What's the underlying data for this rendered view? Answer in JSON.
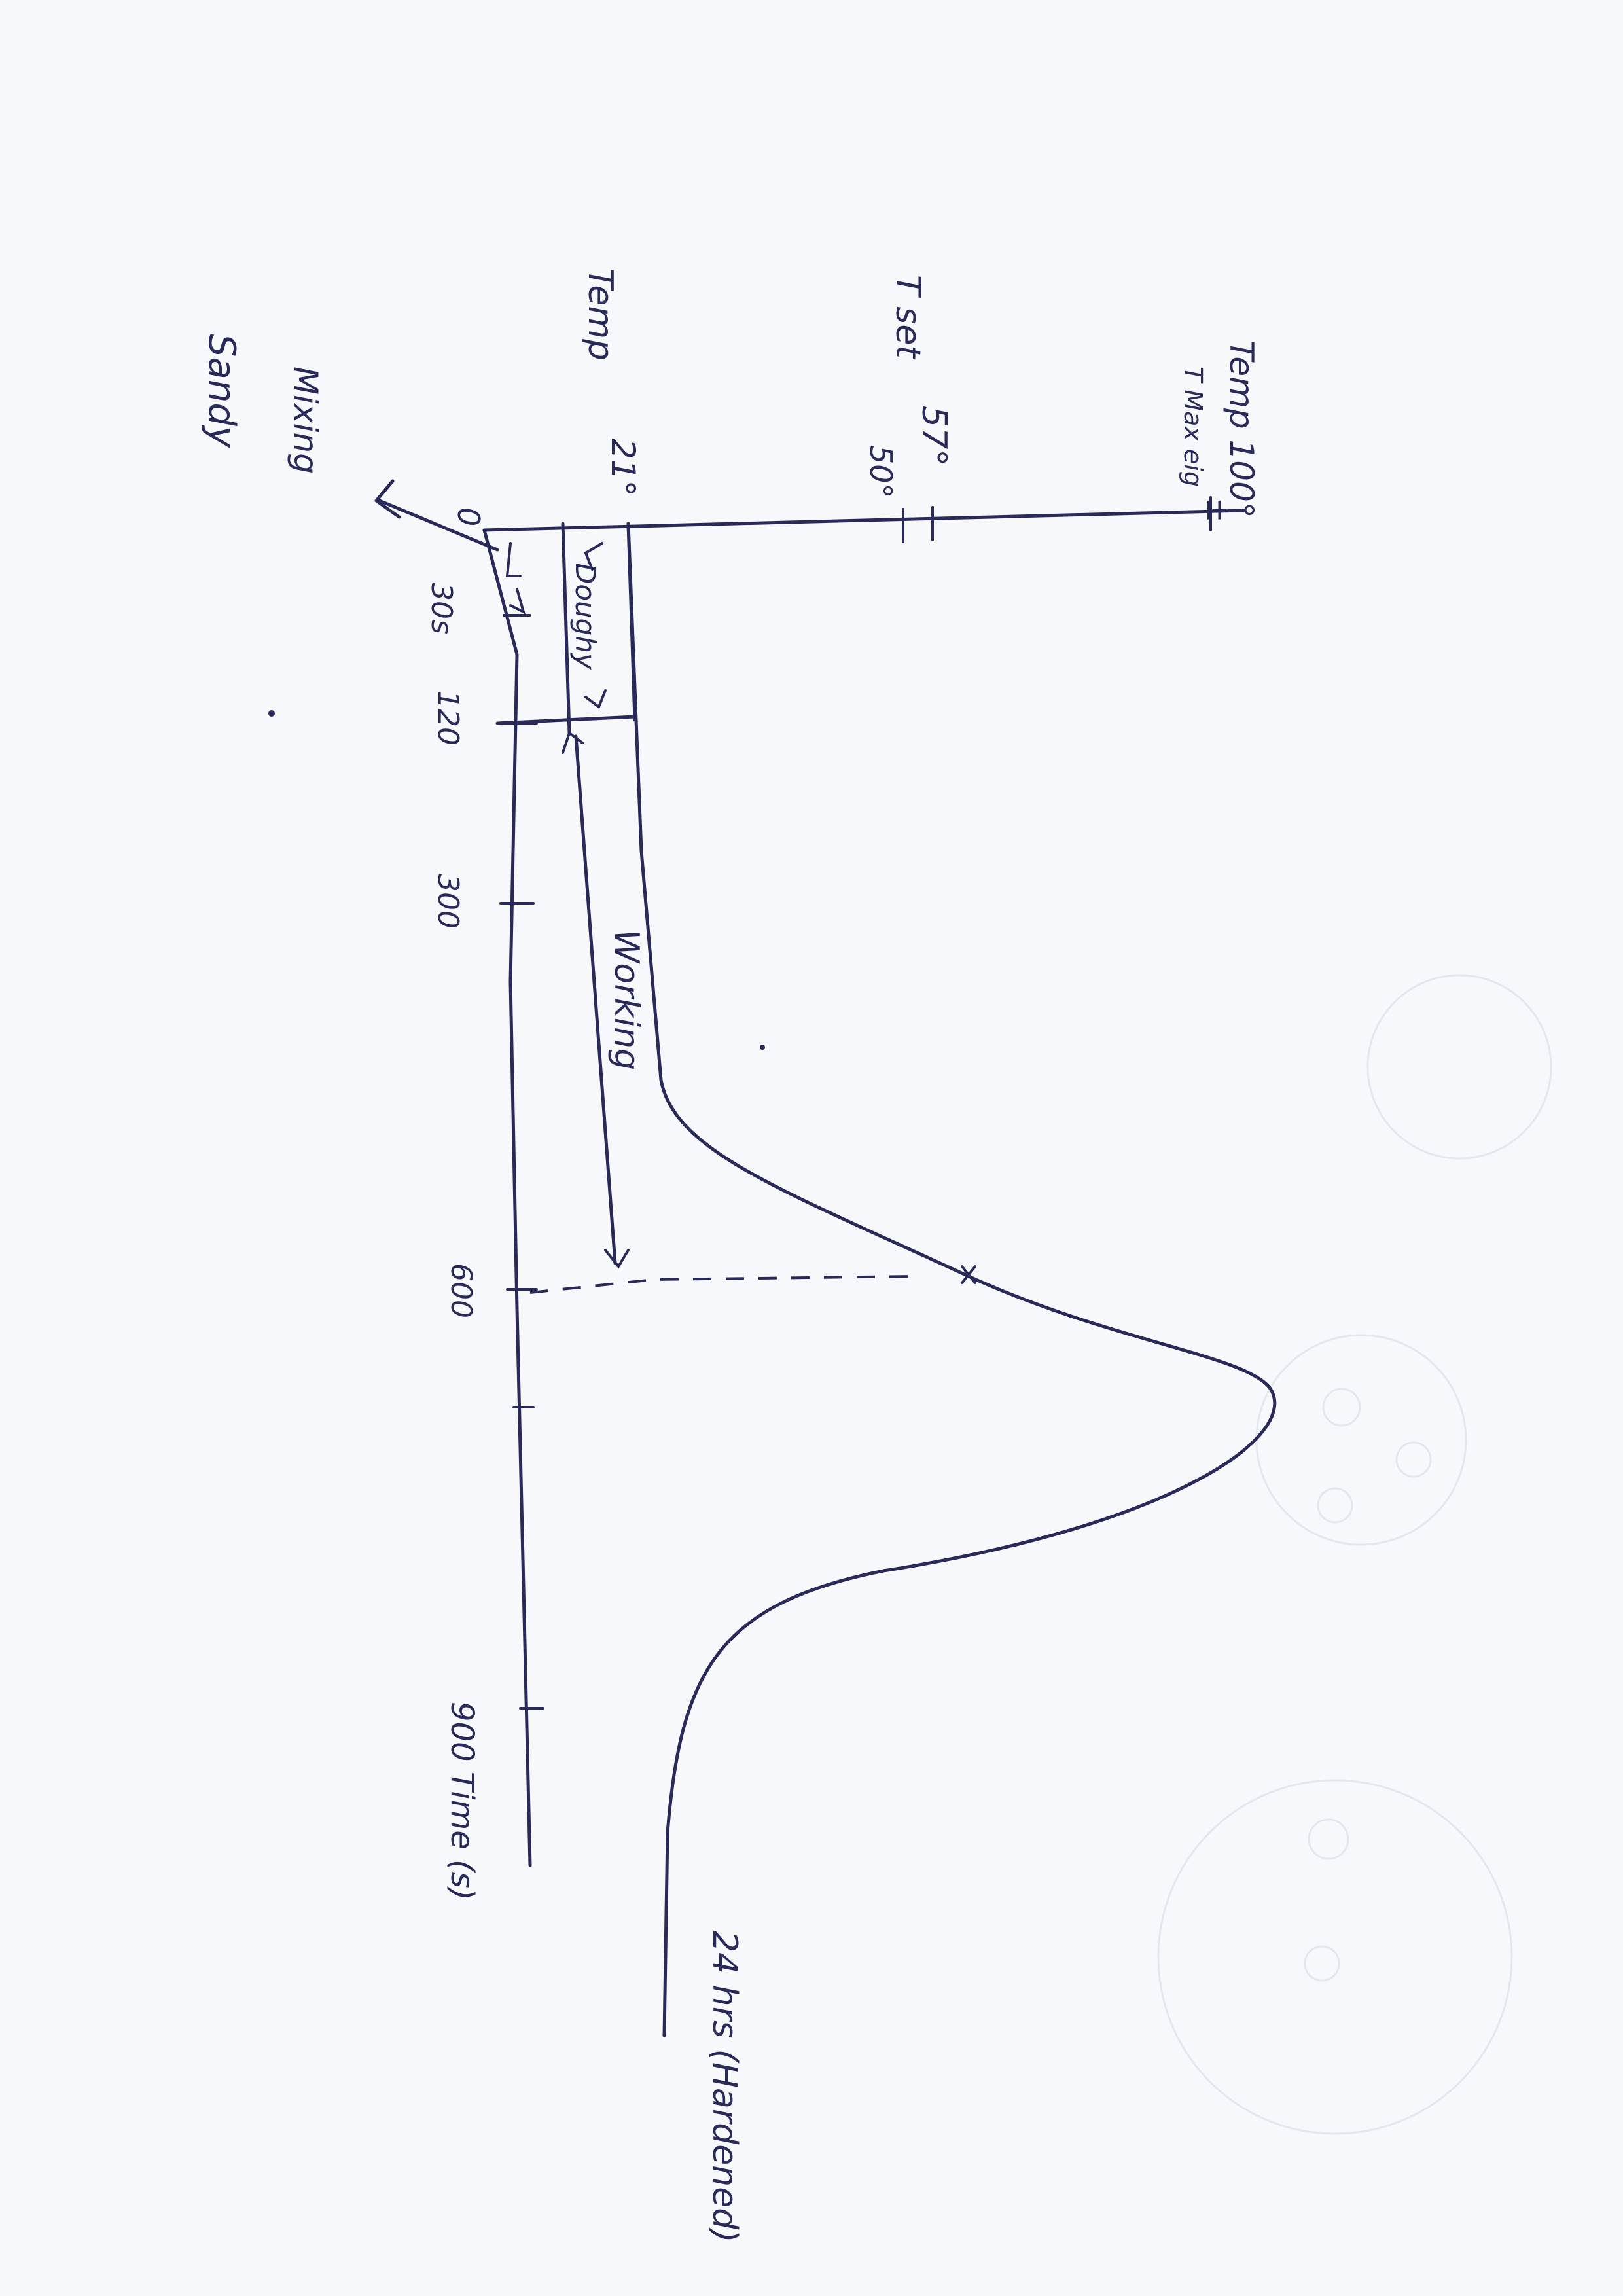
{
  "axis": {
    "temp_top_label": "Temp 100°",
    "t_max_label": "T Max eig",
    "t_max_mark": "±",
    "t_set_label": "T set",
    "t_set_value": "57°",
    "t_50_value": "50°",
    "temp_label": "Temp",
    "temp_21": "21°",
    "origin": "0",
    "tick_30s": "30s",
    "tick_120": "120",
    "tick_300": "300",
    "tick_600": "600",
    "tick_900_time": "900 Time (s)"
  },
  "phases": {
    "mixing": "Mixing",
    "sandy": "Sandy",
    "doughy": "Doughy",
    "working": "Working"
  },
  "annotations": {
    "hardened": "24 hrs (Hardened)"
  },
  "colors": {
    "ink": "#2a2a5a",
    "paper": "#f6f8fb"
  }
}
